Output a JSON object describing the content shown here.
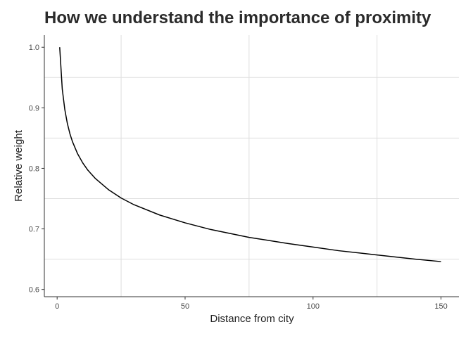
{
  "chart_data": {
    "type": "line",
    "title": "How we understand the importance of proximity",
    "xlabel": "Distance from city",
    "ylabel": "Relative weight",
    "xlim": [
      -5,
      157
    ],
    "ylim": [
      0.588,
      1.02
    ],
    "x_ticks": [
      0,
      50,
      100,
      150
    ],
    "x_tick_labels": [
      "0",
      "50",
      "100",
      "150"
    ],
    "y_ticks": [
      0.6,
      0.7,
      0.8,
      0.9,
      1.0
    ],
    "y_tick_labels": [
      "0.6",
      "0.7",
      "0.8",
      "0.9",
      "1.0"
    ],
    "x_minor_grid": [
      25,
      75,
      125
    ],
    "y_minor_grid": [
      0.65,
      0.75,
      0.85,
      0.95
    ],
    "grid": "minor",
    "legend": "none",
    "colors": {
      "line": "#000000",
      "grid": "#dedede",
      "axis": "#333333",
      "text": "#4d4d4d"
    },
    "series": [
      {
        "x": [
          1,
          2,
          3,
          4,
          5,
          6,
          8,
          10,
          12,
          15,
          20,
          25,
          30,
          40,
          50,
          60,
          75,
          90,
          100,
          110,
          125,
          140,
          150
        ],
        "values": [
          1.0,
          0.931,
          0.897,
          0.874,
          0.857,
          0.844,
          0.824,
          0.809,
          0.797,
          0.783,
          0.765,
          0.751,
          0.74,
          0.723,
          0.71,
          0.699,
          0.686,
          0.676,
          0.67,
          0.664,
          0.657,
          0.65,
          0.646
        ]
      }
    ]
  }
}
